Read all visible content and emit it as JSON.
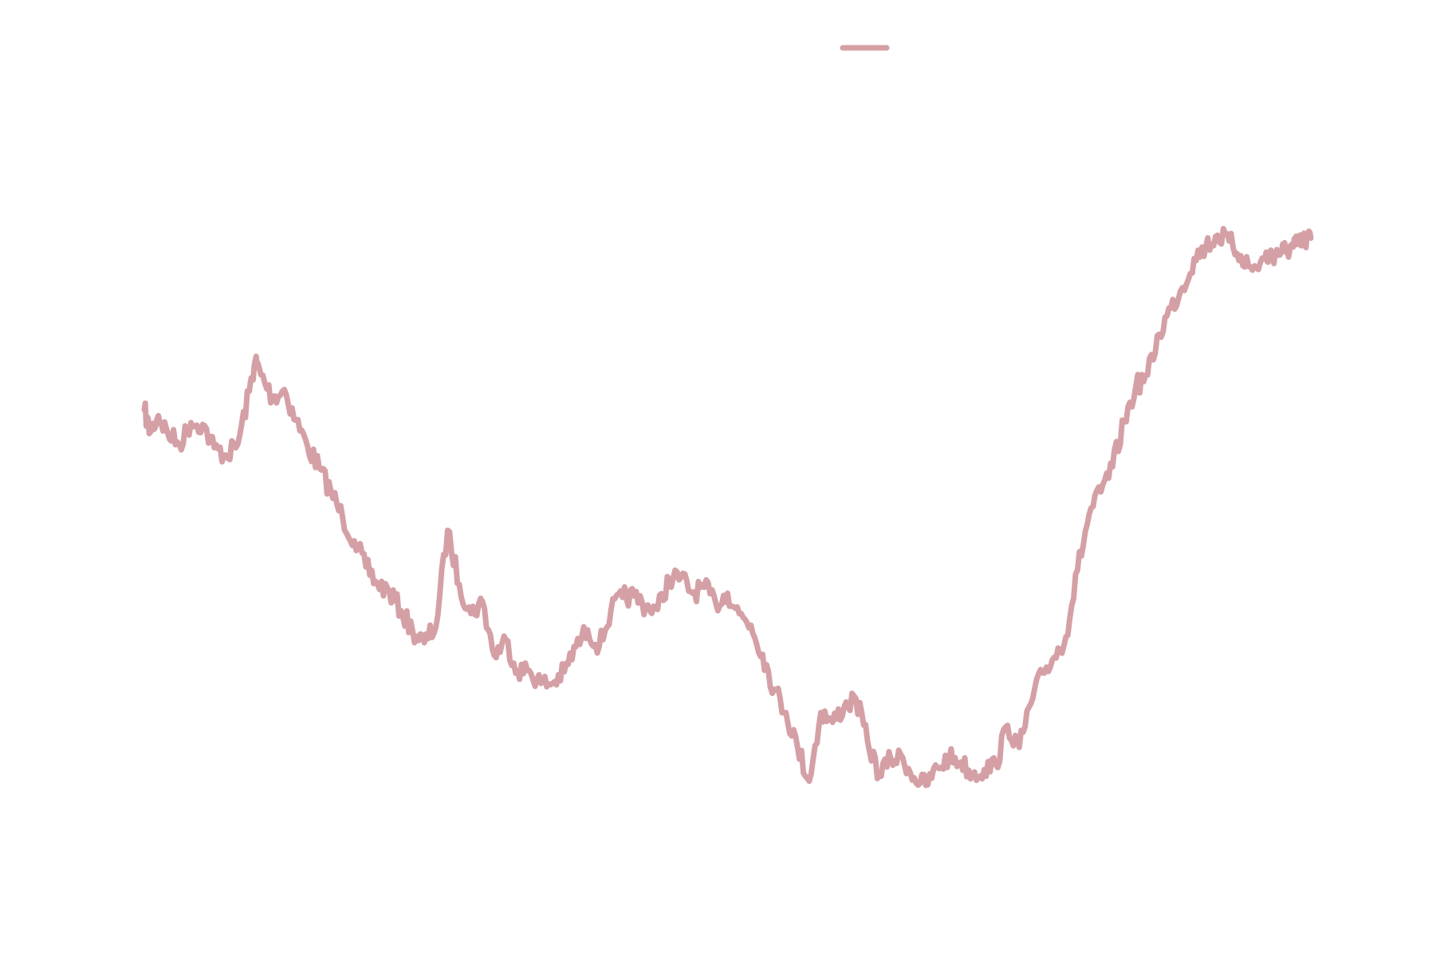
{
  "chart_data": {
    "type": "line",
    "title": "",
    "xlabel": "",
    "ylabel": "",
    "axes_visible": false,
    "grid": false,
    "legend": {
      "placement": "top-center",
      "entries": [
        ""
      ]
    },
    "xlim": [
      0,
      1000
    ],
    "ylim": [
      0,
      1
    ],
    "series": [
      {
        "name": "",
        "color": "#d4a0a6",
        "x": [
          0,
          5,
          12,
          20,
          30,
          40,
          50,
          60,
          70,
          80,
          90,
          95,
          100,
          110,
          120,
          130,
          140,
          150,
          160,
          170,
          180,
          190,
          200,
          210,
          220,
          230,
          240,
          250,
          260,
          270,
          280,
          290,
          300,
          310,
          320,
          330,
          340,
          350,
          360,
          370,
          380,
          390,
          400,
          410,
          420,
          430,
          440,
          450,
          460,
          470,
          480,
          490,
          500,
          510,
          520,
          530,
          540,
          550,
          560,
          570,
          580,
          590,
          600,
          610,
          620,
          630,
          640,
          650,
          660,
          670,
          680,
          690,
          700,
          710,
          720,
          730,
          740,
          750,
          760,
          770,
          780,
          790,
          800,
          810,
          820,
          830,
          840,
          850,
          860,
          870,
          880,
          890,
          900,
          910,
          920,
          930,
          940,
          950,
          960,
          965,
          970,
          975,
          980,
          985,
          990,
          995,
          1000
        ],
        "y": [
          0.7,
          0.661,
          0.69,
          0.66,
          0.64,
          0.678,
          0.675,
          0.635,
          0.622,
          0.64,
          0.732,
          0.784,
          0.76,
          0.72,
          0.735,
          0.682,
          0.637,
          0.6,
          0.56,
          0.515,
          0.475,
          0.43,
          0.4,
          0.388,
          0.355,
          0.32,
          0.3,
          0.328,
          0.493,
          0.4,
          0.35,
          0.37,
          0.278,
          0.305,
          0.252,
          0.252,
          0.23,
          0.23,
          0.25,
          0.293,
          0.322,
          0.294,
          0.355,
          0.378,
          0.38,
          0.363,
          0.357,
          0.41,
          0.412,
          0.385,
          0.395,
          0.367,
          0.385,
          0.35,
          0.33,
          0.28,
          0.22,
          0.18,
          0.12,
          0.062,
          0.18,
          0.163,
          0.19,
          0.204,
          0.13,
          0.073,
          0.1,
          0.103,
          0.068,
          0.055,
          0.085,
          0.103,
          0.095,
          0.074,
          0.082,
          0.09,
          0.158,
          0.12,
          0.195,
          0.248,
          0.275,
          0.31,
          0.425,
          0.521,
          0.559,
          0.602,
          0.679,
          0.74,
          0.76,
          0.83,
          0.875,
          0.91,
          0.96,
          0.98,
          1.0,
          0.99,
          0.965,
          0.94,
          0.96,
          0.965,
          0.968,
          0.972,
          0.975,
          0.98,
          0.985,
          0.99,
          0.995
        ]
      }
    ]
  }
}
